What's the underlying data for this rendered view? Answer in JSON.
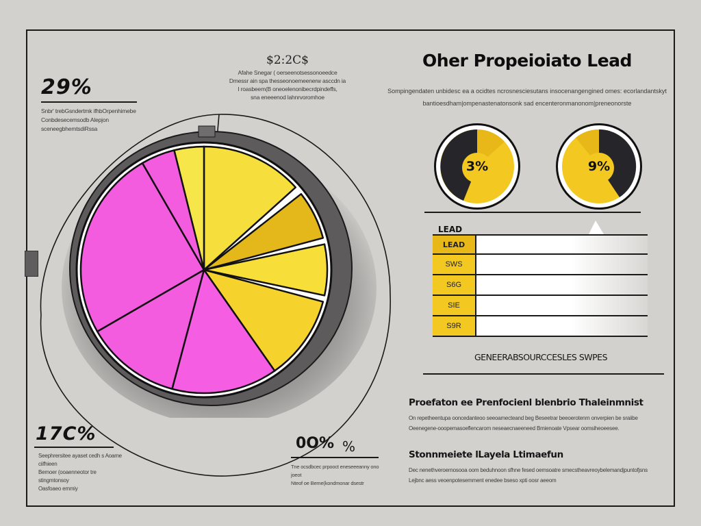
{
  "header": {
    "title": "Oher Propeioiato Lead",
    "subtitle_lines": [
      "Sompingendaten unbidesc ea a ocidtes ncrosnesciesutans insocenangengined omes: ecorlandantskyt",
      "bantioesdham|ompenastenatonsonk sad encenteronmanonom|preneonorste"
    ]
  },
  "callouts": {
    "top_left": {
      "value": "29%",
      "lines": [
        "Snbr' trebGsndertmk ifhbOrpenhimebe",
        "Conbdesecemsodb Alepjon",
        "sceneegbhemtsdiRssa"
      ]
    },
    "top_center": {
      "value": "$2:2C$",
      "lines": [
        "Afahe Snegar ( oerseenotsessonoeedce",
        "Dmessr ain spa thesseonoemeenerw asccdn ia",
        "I roasbeem(B oneoelenonibecrdpindeffs,",
        "sna eneeenod lahnrvoromhoe"
      ]
    },
    "bottom_left": {
      "value": "17C%",
      "lines": [
        "Seephrersitee ayaset cedh s Aoame ciifhieen",
        "Bemoer (ooaenneotor tre stingmtonsoy",
        "Oasfoaeo emmiy"
      ]
    },
    "bottom_center": {
      "value": "0O%",
      "value_suffix": "%",
      "lines": [
        "Tne ocsdbcec prpooct eneseeeanny ono joeot",
        "Nteof oe Beme(kondmonar dsestr"
      ]
    }
  },
  "donuts": [
    {
      "label": "3%",
      "dark_share": 0.45,
      "dark_side": "left"
    },
    {
      "label": "9%",
      "dark_share": 0.4,
      "dark_side": "right"
    }
  ],
  "lead_table": {
    "title": "LEAD",
    "header_label": "LEAD",
    "rows": [
      "SWS",
      "S6G",
      "SIE",
      "S9R"
    ],
    "caption": "GENEERABSOURCCESLES SWPES"
  },
  "sections": [
    {
      "title": "Proefaton ee Prenfocienl blenbrio Thaleinmnist",
      "lines": [
        "On repetheentupa ooncedanteoo seeoamecteand beg Beseetrar beeoerotenm onverpien be sraiibe",
        "Oeenegene-ooopemasoeflencarom neseaecnaeeneed Bmienoate Vpsear oomsiheoeesee."
      ]
    },
    {
      "title": "Stonnmeiete lLayela Ltimaefun",
      "lines": [
        "Dec nenethveroernosooa oom beduhnoon sfhne fesed oemsoatre smecstheavreoybelemandjpuntofjsns",
        "Lejbnc aess veoenpotesemment enedee bseso xpti oosr aeeom"
      ]
    }
  ],
  "colors": {
    "background": "#d3d1ce",
    "pink": "#f45ce0",
    "yellow": "#f6df3c",
    "dark_yellow": "#e4b81a",
    "ring_gray": "#5d5b5c",
    "ink": "#111111",
    "donut_yellow": "#f3c820",
    "donut_dark": "#26262a"
  },
  "chart_data": [
    {
      "type": "pie",
      "title": "",
      "start_angle_deg": 0,
      "direction": "clockwise",
      "slices": [
        {
          "name": "yellow-1",
          "color": "#f6df3c",
          "start": 0,
          "end": 48
        },
        {
          "name": "dark-yellow",
          "color": "#e4b81a",
          "start": 52,
          "end": 75
        },
        {
          "name": "yellow-2",
          "color": "#f7de38",
          "start": 78,
          "end": 102
        },
        {
          "name": "yellow-3",
          "color": "#f5d22c",
          "start": 105,
          "end": 145
        },
        {
          "name": "pink-1",
          "color": "#f55de2",
          "start": 145,
          "end": 195
        },
        {
          "name": "pink-2",
          "color": "#f45ce0",
          "start": 195,
          "end": 240
        },
        {
          "name": "pink-3",
          "color": "#f45ce0",
          "start": 240,
          "end": 330
        },
        {
          "name": "pink-4",
          "color": "#f45ce0",
          "start": 330,
          "end": 346
        },
        {
          "name": "yellow-4",
          "color": "#f6e64a",
          "start": 346,
          "end": 360
        }
      ],
      "values_pct": [
        13.3,
        6.4,
        6.7,
        11.1,
        13.9,
        12.5,
        25.0,
        4.4,
        3.9
      ],
      "annotations": [
        "29%",
        "$2:2C$",
        "17C%",
        "0O%"
      ]
    },
    {
      "type": "pie",
      "title": "",
      "labels": [
        "3%"
      ],
      "series": [
        {
          "name": "dark",
          "values": [
            45
          ]
        },
        {
          "name": "yellow",
          "values": [
            55
          ]
        }
      ]
    },
    {
      "type": "pie",
      "title": "",
      "labels": [
        "9%"
      ],
      "series": [
        {
          "name": "dark",
          "values": [
            40
          ]
        },
        {
          "name": "yellow",
          "values": [
            60
          ]
        }
      ]
    },
    {
      "type": "bar",
      "orientation": "horizontal",
      "title": "LEAD",
      "categories": [
        "LEAD",
        "SWS",
        "S6G",
        "SIE",
        "S9R"
      ],
      "values": [],
      "xlabel": "GENEERABSOURCCESLES SWPES"
    }
  ]
}
